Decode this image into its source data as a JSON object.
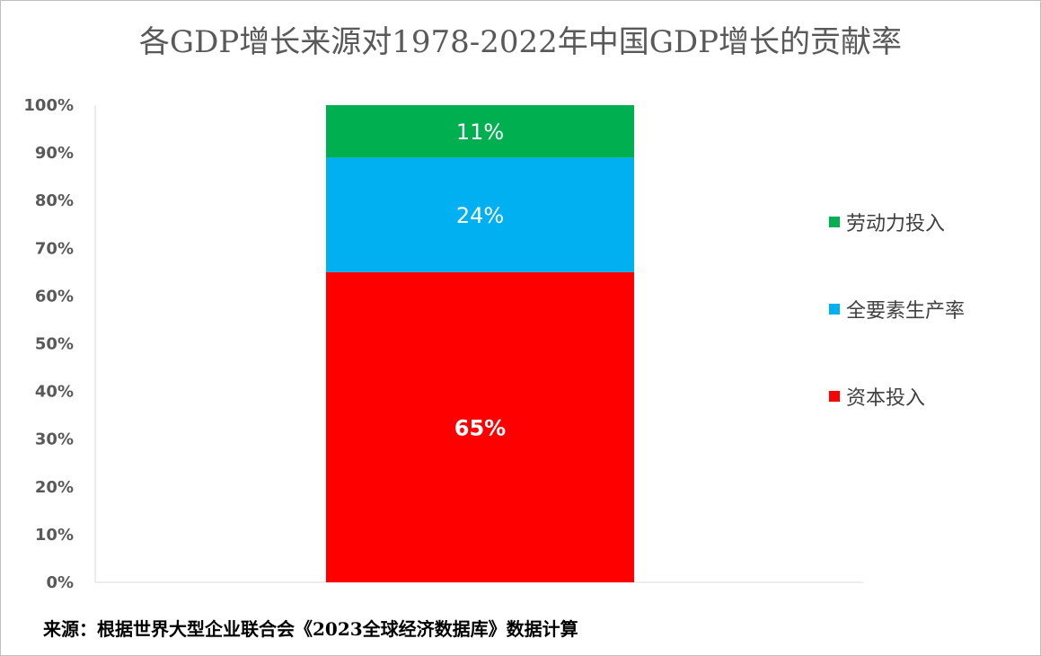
{
  "chart_data": {
    "type": "bar",
    "stacked": true,
    "title": "各GDP增长来源对1978-2022年中国GDP增长的贡献率",
    "xlabel": "",
    "ylabel": "",
    "ylim": [
      0,
      100
    ],
    "y_ticks": [
      "0%",
      "10%",
      "20%",
      "30%",
      "40%",
      "50%",
      "60%",
      "70%",
      "80%",
      "90%",
      "100%"
    ],
    "grid": false,
    "legend_position": "right",
    "categories": [
      ""
    ],
    "series": [
      {
        "name": "资本投入",
        "values": [
          65
        ],
        "label": "65%",
        "color": "#ff0000"
      },
      {
        "name": "全要素生产率",
        "values": [
          24
        ],
        "label": "24%",
        "color": "#00b0f0"
      },
      {
        "name": "劳动力投入",
        "values": [
          11
        ],
        "label": "11%",
        "color": "#00b050"
      }
    ],
    "legend_order": [
      "劳动力投入",
      "全要素生产率",
      "资本投入"
    ]
  },
  "source_note": "来源：根据世界大型企业联合会《2023全球经济数据库》数据计算"
}
